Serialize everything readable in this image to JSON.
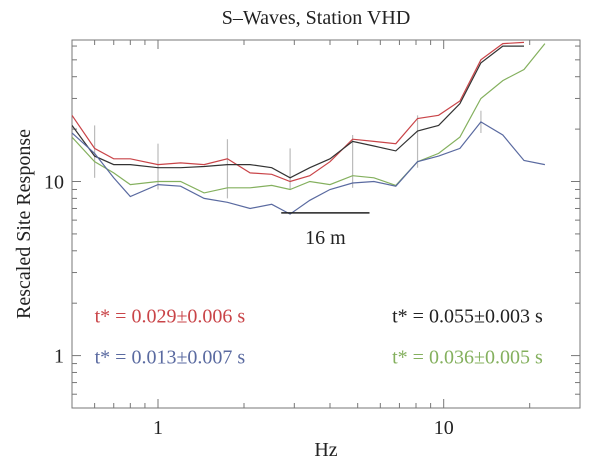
{
  "chart_data": {
    "type": "line",
    "title": "S–Waves,  Station  VHD",
    "xlabel": "Hz",
    "ylabel": "Rescaled Site Response",
    "xscale": "log",
    "yscale": "log",
    "xlim": [
      0.5,
      30
    ],
    "ylim": [
      0.5,
      65
    ],
    "xticks": [
      {
        "value": 1,
        "label": "1"
      },
      {
        "value": 10,
        "label": "10"
      }
    ],
    "yticks": [
      {
        "value": 1,
        "label": "1"
      },
      {
        "value": 10,
        "label": "10"
      }
    ],
    "grid": false,
    "series": [
      {
        "color": "#c94448",
        "x": [
          0.5,
          0.6,
          0.7,
          0.8,
          1.0,
          1.2,
          1.45,
          1.75,
          2.1,
          2.5,
          2.9,
          3.4,
          4.0,
          4.8,
          5.7,
          6.8,
          8.1,
          9.6,
          11.4,
          13.5,
          16.1,
          19.1
        ],
        "y": [
          24,
          15.5,
          13.5,
          13.5,
          12.5,
          12.8,
          12.5,
          13.5,
          11.2,
          11.0,
          10.0,
          10.8,
          13.0,
          17.5,
          17.0,
          16.5,
          23.0,
          24.0,
          29.0,
          50.0,
          62.0,
          63.0
        ]
      },
      {
        "color": "#333333",
        "x": [
          0.5,
          0.6,
          0.7,
          0.8,
          1.0,
          1.2,
          1.45,
          1.75,
          2.1,
          2.5,
          2.9,
          3.4,
          4.0,
          4.8,
          5.7,
          6.8,
          8.1,
          9.6,
          11.4,
          13.5,
          16.1,
          19.1
        ],
        "y": [
          21,
          14,
          12.5,
          12.5,
          12.0,
          12.0,
          12.2,
          12.5,
          12.5,
          12.0,
          10.5,
          12.0,
          13.5,
          17.0,
          16.0,
          15.0,
          19.5,
          21.0,
          28.0,
          48.0,
          60.0,
          60.0
        ]
      },
      {
        "color": "#84b05e",
        "x": [
          0.5,
          0.6,
          0.7,
          0.8,
          1.0,
          1.2,
          1.45,
          1.75,
          2.1,
          2.5,
          2.9,
          3.4,
          4.0,
          4.8,
          5.7,
          6.8,
          8.1,
          9.6,
          11.4,
          13.5,
          16.1,
          19.1,
          22.6
        ],
        "y": [
          18,
          13,
          11.2,
          9.6,
          10.0,
          10.0,
          8.6,
          9.2,
          9.2,
          9.5,
          9.0,
          10.0,
          9.6,
          10.8,
          10.5,
          9.5,
          13.0,
          14.5,
          18.0,
          30.0,
          38.0,
          44.0,
          62.0
        ]
      },
      {
        "color": "#5a6aa0",
        "x": [
          0.5,
          0.6,
          0.7,
          0.8,
          1.0,
          1.2,
          1.45,
          1.75,
          2.1,
          2.5,
          2.9,
          3.4,
          4.0,
          4.8,
          5.7,
          6.8,
          8.1,
          9.6,
          11.4,
          13.5,
          16.1,
          19.1,
          22.6
        ],
        "y": [
          19,
          14.5,
          10.5,
          8.2,
          9.6,
          9.4,
          8.0,
          7.6,
          7.0,
          7.4,
          6.5,
          7.8,
          9.0,
          9.8,
          10.0,
          9.4,
          13.0,
          14.0,
          15.5,
          22.0,
          18.5,
          13.2,
          12.5
        ]
      }
    ],
    "error_bars": [
      {
        "x": 0.6,
        "y_low": 10.5,
        "y_high": 21
      },
      {
        "x": 1.0,
        "y_low": 9.0,
        "y_high": 16.5
      },
      {
        "x": 1.75,
        "y_low": 8.0,
        "y_high": 17.5
      },
      {
        "x": 2.9,
        "y_low": 9.0,
        "y_high": 15.5
      },
      {
        "x": 4.8,
        "y_low": 9.2,
        "y_high": 18.5
      },
      {
        "x": 8.1,
        "y_low": 12.0,
        "y_high": 24.0
      },
      {
        "x": 13.5,
        "y_low": 19.0,
        "y_high": 25.5
      }
    ],
    "reference_segment": {
      "x_start": 2.7,
      "x_end": 5.5,
      "y": 6.6,
      "label": "16  m"
    },
    "annotations": [
      {
        "text": "t*  =  0.029±0.006  s",
        "color": "#c94448",
        "x": 0.6,
        "y": 1.55
      },
      {
        "text": "t*  =  0.013±0.007  s",
        "color": "#5a6aa0",
        "x": 0.6,
        "y": 0.9
      },
      {
        "text": "t*  =  0.055±0.003  s",
        "color": "#222222",
        "x": 6.6,
        "y": 1.55
      },
      {
        "text": "t*  =  0.036±0.005  s",
        "color": "#84b05e",
        "x": 6.6,
        "y": 0.9
      }
    ]
  }
}
